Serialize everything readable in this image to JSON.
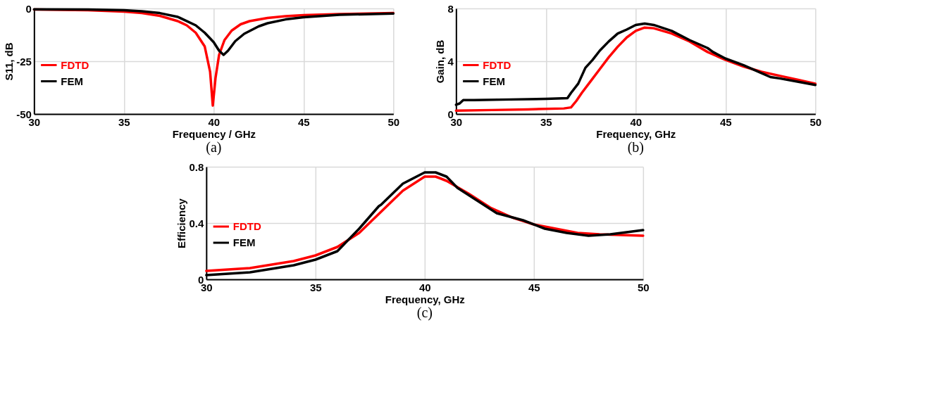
{
  "chart_data": [
    {
      "type": "line",
      "title": "(a)",
      "xlabel": "Frequency / GHz",
      "ylabel": "S11, dB",
      "xlim": [
        30,
        50
      ],
      "xticks": [
        30,
        35,
        40,
        45,
        50
      ],
      "ylim": [
        -50,
        0
      ],
      "yticks": [
        -50,
        -25,
        0
      ],
      "grid": true,
      "legend": "left",
      "line_style": "solid",
      "series": [
        {
          "name": "FDTD",
          "color": "#ff0000",
          "x": [
            30,
            33,
            35,
            36,
            37,
            38,
            38.5,
            39,
            39.5,
            39.8,
            39.95,
            40.1,
            40.3,
            40.6,
            41,
            41.5,
            42,
            43,
            44,
            45,
            47,
            50
          ],
          "values": [
            -0.5,
            -0.8,
            -1.5,
            -2.2,
            -3.5,
            -6,
            -8,
            -11.5,
            -18,
            -30,
            -46,
            -33,
            -22,
            -15,
            -10.5,
            -7.5,
            -6,
            -4.5,
            -3.7,
            -3.2,
            -2.7,
            -2.2
          ]
        },
        {
          "name": "FEM",
          "color": "#000000",
          "x": [
            30,
            33,
            35,
            36,
            37,
            38,
            39,
            39.5,
            40,
            40.3,
            40.55,
            40.8,
            41.2,
            41.7,
            42.5,
            43,
            44,
            45,
            47,
            50
          ],
          "values": [
            -0.4,
            -0.5,
            -0.8,
            -1.3,
            -2.2,
            -4,
            -8,
            -11.5,
            -16,
            -20,
            -22,
            -20,
            -15.5,
            -12,
            -8.5,
            -7,
            -5.2,
            -4.2,
            -3,
            -2.4
          ]
        }
      ]
    },
    {
      "type": "line",
      "title": "(b)",
      "xlabel": "Frequency, GHz",
      "ylabel": "Gain, dB",
      "xlim": [
        30,
        50
      ],
      "xticks": [
        30,
        35,
        40,
        45,
        50
      ],
      "ylim": [
        0,
        8
      ],
      "yticks": [
        0,
        4,
        8
      ],
      "grid": true,
      "legend": "left",
      "line_style": "solid",
      "series": [
        {
          "name": "FDTD",
          "color": "#ff0000",
          "x": [
            30,
            32,
            34,
            36,
            36.4,
            36.7,
            37,
            37.5,
            38,
            38.5,
            39,
            39.5,
            40,
            40.5,
            41,
            42,
            43,
            44,
            45,
            46,
            47,
            48,
            49,
            50
          ],
          "values": [
            0.25,
            0.3,
            0.35,
            0.42,
            0.5,
            1.0,
            1.6,
            2.5,
            3.4,
            4.3,
            5.1,
            5.8,
            6.3,
            6.55,
            6.5,
            6.1,
            5.5,
            4.7,
            4.1,
            3.6,
            3.2,
            2.9,
            2.6,
            2.3
          ]
        },
        {
          "name": "FEM",
          "color": "#000000",
          "x": [
            30,
            30.2,
            30.4,
            31,
            33,
            35,
            36.2,
            36.4,
            36.8,
            37.2,
            37.6,
            38,
            38.5,
            39,
            39.5,
            40,
            40.5,
            41,
            42,
            43,
            44,
            44.3,
            45,
            46,
            47,
            47.5,
            48,
            49,
            50
          ],
          "values": [
            0.7,
            0.8,
            1.05,
            1.05,
            1.1,
            1.15,
            1.2,
            1.6,
            2.3,
            3.5,
            4.1,
            4.8,
            5.5,
            6.1,
            6.4,
            6.75,
            6.85,
            6.75,
            6.3,
            5.6,
            5.0,
            4.7,
            4.2,
            3.7,
            3.1,
            2.8,
            2.7,
            2.45,
            2.2
          ]
        }
      ]
    },
    {
      "type": "line",
      "title": "(c)",
      "xlabel": "Frequency, GHz",
      "ylabel": "Efficiency",
      "xlim": [
        30,
        50
      ],
      "xticks": [
        30,
        35,
        40,
        45,
        50
      ],
      "ylim": [
        0,
        0.8
      ],
      "yticks": [
        0,
        0.4,
        0.8
      ],
      "grid": true,
      "legend": "left",
      "line_style": "solid",
      "series": [
        {
          "name": "FDTD",
          "color": "#ff0000",
          "x": [
            30,
            32,
            34,
            35,
            36,
            37,
            38,
            39,
            40,
            40.5,
            41,
            42,
            43,
            44,
            45,
            46,
            47,
            48,
            50
          ],
          "values": [
            0.06,
            0.08,
            0.13,
            0.17,
            0.23,
            0.33,
            0.48,
            0.63,
            0.73,
            0.73,
            0.7,
            0.61,
            0.51,
            0.44,
            0.39,
            0.36,
            0.33,
            0.32,
            0.31
          ]
        },
        {
          "name": "FEM",
          "color": "#000000",
          "x": [
            30,
            32,
            34,
            35,
            36,
            37,
            37.9,
            38,
            39,
            40,
            40.5,
            41,
            41.5,
            42.5,
            43.3,
            44.5,
            45.5,
            46.5,
            47.5,
            48.5,
            50
          ],
          "values": [
            0.03,
            0.05,
            0.1,
            0.14,
            0.2,
            0.36,
            0.52,
            0.53,
            0.68,
            0.76,
            0.76,
            0.73,
            0.65,
            0.55,
            0.47,
            0.42,
            0.36,
            0.33,
            0.31,
            0.32,
            0.35
          ]
        }
      ]
    }
  ]
}
